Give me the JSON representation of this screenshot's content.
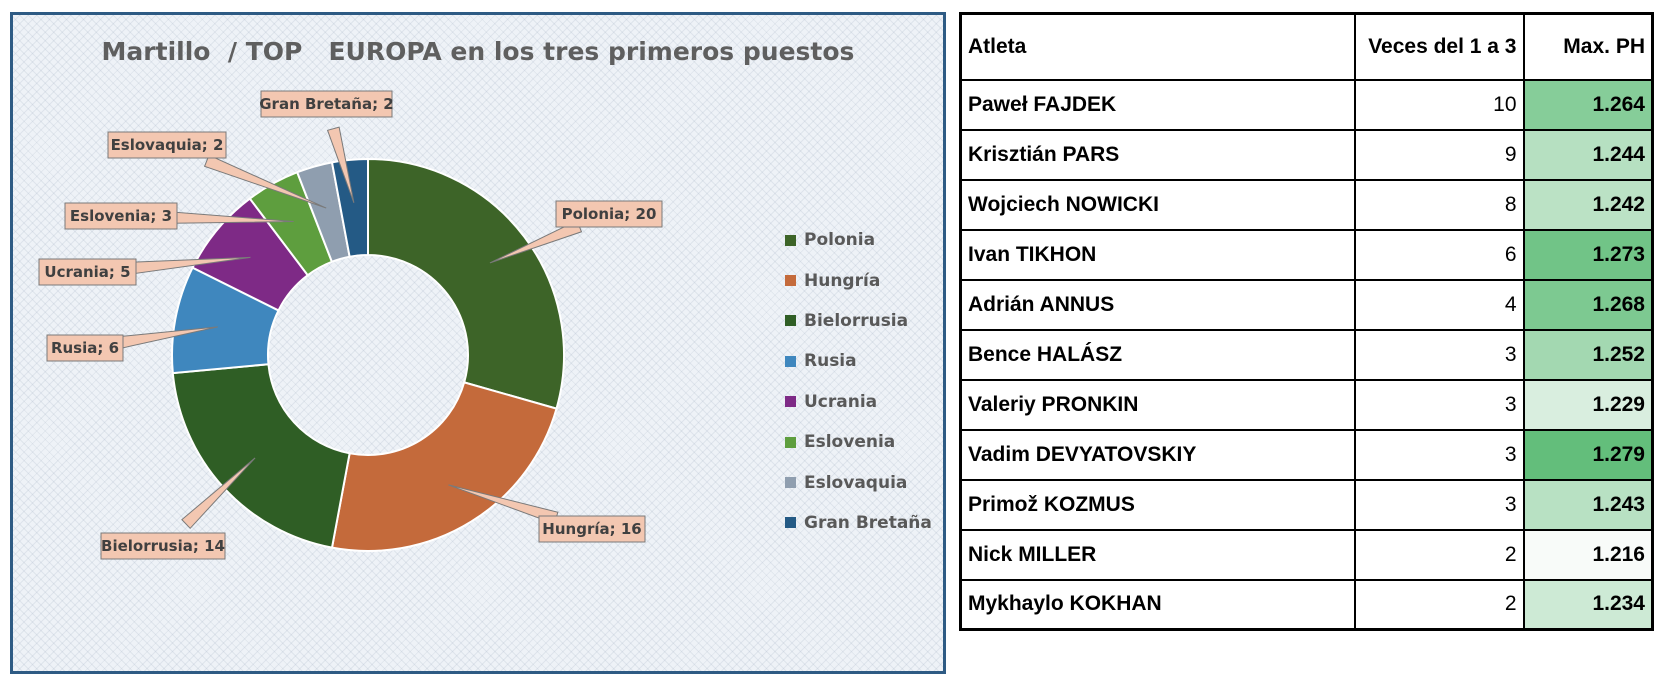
{
  "chart_data": {
    "type": "pie",
    "variant": "donut",
    "title": "Martillo  / TOP   EUROPA en los tres primeros puestos",
    "categories": [
      "Polonia",
      "Hungría",
      "Bielorrusia",
      "Rusia",
      "Ucrania",
      "Eslovenia",
      "Eslovaquia",
      "Gran Bretaña"
    ],
    "values": [
      20,
      16,
      14,
      6,
      5,
      3,
      2,
      2
    ],
    "colors": [
      "#3d6428",
      "#c46a3b",
      "#2f5e25",
      "#3f87be",
      "#7e2a86",
      "#5e9e3e",
      "#8f9eaf",
      "#245a85"
    ],
    "data_labels": [
      "Polonia; 20",
      "Hungría; 16",
      "Bielorrusia; 14",
      "Rusia; 6",
      "Ucrania; 5",
      "Eslovenia; 3",
      "Eslovaquia; 2",
      "Gran Bretaña; 2"
    ],
    "legend_position": "right"
  },
  "table": {
    "headers": [
      "Atleta",
      "Veces del 1 a 3",
      "Max. PH"
    ],
    "rows": [
      {
        "name": "Paweł FAJDEK",
        "count": "10",
        "max": "1.264"
      },
      {
        "name": "Krisztián PARS",
        "count": "9",
        "max": "1.244"
      },
      {
        "name": "Wojciech NOWICKI",
        "count": "8",
        "max": "1.242"
      },
      {
        "name": "Ivan TIKHON",
        "count": "6",
        "max": "1.273"
      },
      {
        "name": "Adrián ANNUS",
        "count": "4",
        "max": "1.268"
      },
      {
        "name": "Bence HALÁSZ",
        "count": "3",
        "max": "1.252"
      },
      {
        "name": "Valeriy PRONKIN",
        "count": "3",
        "max": "1.229"
      },
      {
        "name": "Vadim DEVYATOVSKIY",
        "count": "3",
        "max": "1.279"
      },
      {
        "name": "Primož KOZMUS",
        "count": "3",
        "max": "1.243"
      },
      {
        "name": "Nick MILLER",
        "count": "2",
        "max": "1.216"
      },
      {
        "name": "Mykhaylo KOKHAN",
        "count": "2",
        "max": "1.234"
      }
    ]
  }
}
